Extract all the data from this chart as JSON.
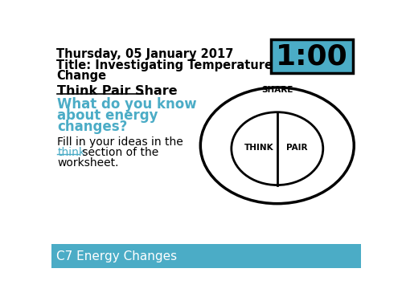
{
  "bg_color": "#ffffff",
  "footer_color": "#4bacc6",
  "timer_bg_color": "#4bacc6",
  "timer_border_color": "#000000",
  "title_line1": "Thursday, 05 January 2017",
  "title_line2": "Title: Investigating Temperature",
  "title_line3": "Change",
  "timer_text": "1:00",
  "think_pair_share": "Think Pair Share",
  "question_line1": "What do you know",
  "question_line2": "about energy",
  "question_line3": "changes?",
  "fill_text1": "Fill in your ideas in the",
  "fill_text2": " section of the",
  "fill_text3": "worksheet.",
  "think_link": "think",
  "footer_text": "C7 Energy Changes",
  "cyan_color": "#4bacc6",
  "black_color": "#000000",
  "white_color": "#ffffff",
  "share_label": "SHARE",
  "think_label": "THINK",
  "pair_label": "PAIR"
}
